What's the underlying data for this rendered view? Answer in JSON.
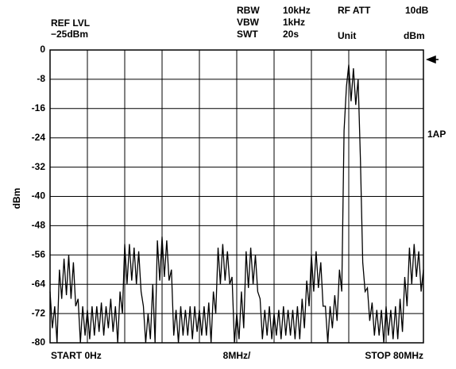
{
  "chart_data": {
    "type": "line",
    "ref_level_label": "REF LVL",
    "ref_level": "−25dBm",
    "settings": [
      {
        "label": "RBW",
        "value": "10kHz"
      },
      {
        "label": "VBW",
        "value": "1kHz"
      },
      {
        "label": "SWT",
        "value": "20s"
      }
    ],
    "rf_att_label": "RF ATT",
    "rf_att": "10dB",
    "unit_label": "Unit",
    "unit": "dBm",
    "y_label": "dBm",
    "trace_label": "1AP",
    "x_start_label": "START 0Hz",
    "x_div_label": "8MHz/",
    "x_stop_label": "STOP 80MHz",
    "xlim": [
      0,
      80
    ],
    "ylim": [
      -80,
      0
    ],
    "xticks": [
      0,
      8,
      16,
      24,
      32,
      40,
      48,
      56,
      64,
      72,
      80
    ],
    "yticks": [
      0,
      -8,
      -16,
      -24,
      -32,
      -40,
      -48,
      -56,
      -64,
      -72,
      -80
    ],
    "grid": true,
    "color": "#000000",
    "x": [
      0,
      0.5,
      1,
      1.5,
      2,
      2.5,
      3,
      3.5,
      4,
      4.5,
      5,
      5.5,
      6,
      6.5,
      7,
      7.5,
      8,
      8.5,
      9,
      9.5,
      10,
      10.5,
      11,
      11.5,
      12,
      12.5,
      13,
      13.5,
      14,
      14.5,
      15,
      15.5,
      16,
      16.5,
      17,
      17.5,
      18,
      18.5,
      19,
      19.5,
      20,
      20.5,
      21,
      21.5,
      22,
      22.5,
      23,
      23.5,
      24,
      24.5,
      25,
      25.5,
      26,
      26.5,
      27,
      27.5,
      28,
      28.5,
      29,
      29.5,
      30,
      30.5,
      31,
      31.5,
      32,
      32.5,
      33,
      33.5,
      34,
      34.5,
      35,
      35.5,
      36,
      36.5,
      37,
      37.5,
      38,
      38.5,
      39,
      39.5,
      40,
      40.5,
      41,
      41.5,
      42,
      42.5,
      43,
      43.5,
      44,
      44.5,
      45,
      45.5,
      46,
      46.5,
      47,
      47.5,
      48,
      48.5,
      49,
      49.5,
      50,
      50.5,
      51,
      51.5,
      52,
      52.5,
      53,
      53.5,
      54,
      54.5,
      55,
      55.5,
      56,
      56.5,
      57,
      57.5,
      58,
      58.5,
      59,
      59.5,
      60,
      60.5,
      61,
      61.5,
      62,
      62.5,
      63,
      63.5,
      64,
      64.5,
      65,
      65.5,
      66,
      66.5,
      67,
      67.5,
      68,
      68.5,
      69,
      69.5,
      70,
      70.5,
      71,
      71.5,
      72,
      72.5,
      73,
      73.5,
      74,
      74.5,
      75,
      75.5,
      76,
      76.5,
      77,
      77.5,
      78,
      78.5,
      79,
      79.5,
      80
    ],
    "values": [
      -66,
      -76,
      -70,
      -80,
      -60,
      -68,
      -57,
      -67,
      -56,
      -68,
      -58,
      -70,
      -68,
      -80,
      -70,
      -78,
      -71,
      -79,
      -70,
      -78,
      -70,
      -77,
      -69,
      -78,
      -70,
      -76,
      -68,
      -77,
      -70,
      -80,
      -66,
      -72,
      -53,
      -64,
      -53,
      -63,
      -54,
      -64,
      -55,
      -66,
      -70,
      -80,
      -72,
      -79,
      -64,
      -80,
      -52,
      -63,
      -51,
      -62,
      -52,
      -63,
      -60,
      -78,
      -71,
      -80,
      -70,
      -78,
      -71,
      -78,
      -70,
      -79,
      -70,
      -77,
      -71,
      -78,
      -70,
      -78,
      -69,
      -80,
      -66,
      -72,
      -54,
      -64,
      -53,
      -63,
      -55,
      -64,
      -62,
      -80,
      -72,
      -79,
      -66,
      -76,
      -55,
      -65,
      -54,
      -64,
      -56,
      -66,
      -68,
      -79,
      -71,
      -78,
      -70,
      -79,
      -72,
      -78,
      -71,
      -79,
      -70,
      -78,
      -71,
      -78,
      -71,
      -79,
      -70,
      -79,
      -68,
      -76,
      -63,
      -70,
      -56,
      -66,
      -55,
      -65,
      -58,
      -70,
      -70,
      -80,
      -70,
      -76,
      -67,
      -74,
      -60,
      -66,
      -22,
      -10,
      -4,
      -14,
      -5,
      -15,
      -8,
      -30,
      -58,
      -66,
      -65,
      -74,
      -69,
      -78,
      -71,
      -78,
      -71,
      -80,
      -70,
      -78,
      -71,
      -79,
      -70,
      -79,
      -68,
      -77,
      -62,
      -70,
      -54,
      -64,
      -53,
      -62,
      -55,
      -66,
      -60
    ]
  }
}
